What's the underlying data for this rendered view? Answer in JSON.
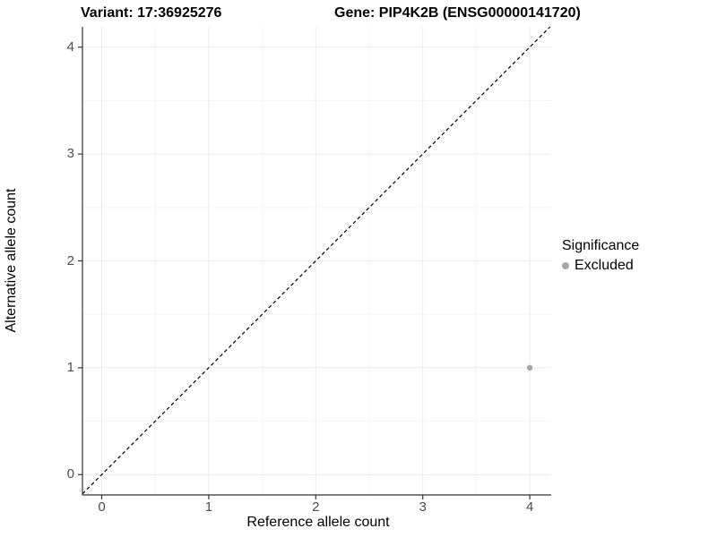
{
  "chart_data": {
    "type": "scatter",
    "titles": {
      "variant": "Variant: 17:36925276",
      "gene": "Gene: PIP4K2B (ENSG00000141720)"
    },
    "xlabel": "Reference allele count",
    "ylabel": "Alternative allele count",
    "xlim": [
      -0.18,
      4.2
    ],
    "ylim": [
      -0.19,
      4.19
    ],
    "x_ticks": [
      0,
      1,
      2,
      3,
      4
    ],
    "y_ticks": [
      0,
      1,
      2,
      3,
      4
    ],
    "minor_ticks": [
      0.5,
      1.5,
      2.5,
      3.5
    ],
    "grid": true,
    "identity_line": {
      "style": "dashed",
      "color": "#000000",
      "from": -0.18,
      "to": 4.19
    },
    "series": [
      {
        "name": "Excluded",
        "color": "#a6a6a6",
        "points": [
          {
            "x": 4,
            "y": 1
          }
        ]
      }
    ],
    "legend": {
      "title": "Significance",
      "position": "right",
      "items": [
        {
          "label": "Excluded",
          "color": "#a6a6a6"
        }
      ]
    }
  },
  "colors": {
    "background": "#ffffff",
    "axis_line": "#333333",
    "grid_major": "#ebebeb",
    "grid_minor": "#f5f5f5",
    "tick_label": "#4d4d4d",
    "point": "#a6a6a6",
    "dashed_line": "#000000"
  }
}
